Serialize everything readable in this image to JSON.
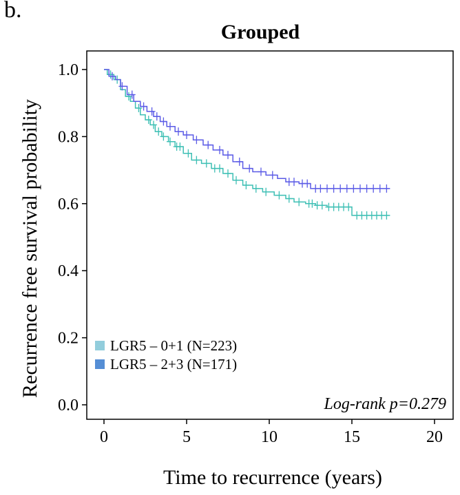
{
  "panel_label": "b.",
  "chart_data": {
    "type": "line",
    "subtype": "kaplan-meier",
    "title": "Grouped",
    "xlabel": "Time to recurrence (years)",
    "ylabel": "Recurrence free survival probability",
    "xlim": [
      0,
      20
    ],
    "ylim": [
      0,
      1
    ],
    "x_ticks": [
      0,
      5,
      10,
      15,
      20
    ],
    "y_ticks": [
      0.0,
      0.2,
      0.4,
      0.6,
      0.8,
      1.0
    ],
    "x_tick_labels": [
      "0",
      "5",
      "10",
      "15",
      "20"
    ],
    "y_tick_labels": [
      "0.0",
      "0.2",
      "0.4",
      "0.6",
      "0.8",
      "1.0"
    ],
    "grid": false,
    "legend_position": "bottom-left",
    "annotation": "Log-rank p=0.279",
    "series": [
      {
        "name": "LGR5 – 0+1 (N=223)",
        "legend_color": "#92cddc",
        "line_color": "#3dbfb4",
        "x": [
          0,
          0.2,
          0.6,
          1.0,
          1.3,
          1.6,
          1.9,
          2.2,
          2.5,
          2.8,
          3.1,
          3.5,
          3.9,
          4.3,
          4.8,
          5.3,
          5.9,
          6.5,
          7.2,
          7.8,
          8.4,
          9.0,
          9.6,
          10.3,
          11.0,
          11.5,
          12.2,
          12.8,
          13.5,
          14.5,
          15.0,
          17.3
        ],
        "y": [
          1.0,
          0.985,
          0.97,
          0.94,
          0.92,
          0.905,
          0.885,
          0.865,
          0.85,
          0.835,
          0.815,
          0.8,
          0.785,
          0.77,
          0.75,
          0.73,
          0.72,
          0.705,
          0.69,
          0.67,
          0.655,
          0.645,
          0.635,
          0.625,
          0.615,
          0.605,
          0.6,
          0.595,
          0.59,
          0.59,
          0.565,
          0.565
        ],
        "censor_x": [
          0.4,
          0.8,
          1.5,
          2.1,
          2.7,
          3.0,
          3.3,
          3.6,
          4.0,
          4.4,
          4.6,
          5.1,
          5.6,
          6.2,
          6.7,
          7.0,
          7.5,
          8.0,
          8.6,
          9.2,
          9.8,
          10.6,
          11.2,
          11.8,
          12.4,
          12.6,
          12.9,
          13.2,
          13.6,
          13.9,
          14.2,
          14.5,
          14.8,
          15.3,
          15.6,
          15.9,
          16.2,
          16.5,
          16.8,
          17.1
        ]
      },
      {
        "name": "LGR5 – 2+3 (N=171)",
        "legend_color": "#558ed5",
        "line_color": "#5a5ae6",
        "x": [
          0,
          0.3,
          0.7,
          1.0,
          1.4,
          1.8,
          2.2,
          2.6,
          3.0,
          3.4,
          3.8,
          4.3,
          4.8,
          5.4,
          6.0,
          6.6,
          7.2,
          7.8,
          8.4,
          9.0,
          9.8,
          10.5,
          11.0,
          11.8,
          12.5,
          17.3
        ],
        "y": [
          1.0,
          0.98,
          0.97,
          0.95,
          0.925,
          0.905,
          0.89,
          0.875,
          0.86,
          0.845,
          0.83,
          0.815,
          0.805,
          0.79,
          0.775,
          0.76,
          0.745,
          0.725,
          0.705,
          0.695,
          0.685,
          0.675,
          0.665,
          0.66,
          0.645,
          0.645
        ],
        "censor_x": [
          0.5,
          1.1,
          1.7,
          2.4,
          2.9,
          3.2,
          3.6,
          4.0,
          4.5,
          5.0,
          5.6,
          6.3,
          7.0,
          7.5,
          8.2,
          8.8,
          9.5,
          10.2,
          11.2,
          11.5,
          12.0,
          12.3,
          12.8,
          13.1,
          13.5,
          13.9,
          14.3,
          14.7,
          15.1,
          15.5,
          15.9,
          16.3,
          16.7,
          17.1
        ]
      }
    ]
  }
}
